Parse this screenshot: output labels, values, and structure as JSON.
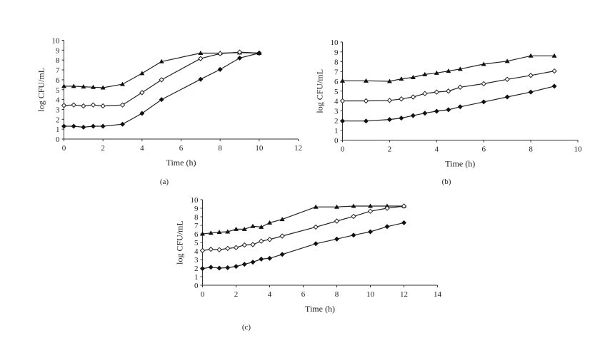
{
  "chart_data": [
    {
      "type": "line",
      "panel_label": "(a)",
      "xlabel": "Time (h)",
      "ylabel": "log CFU/mL",
      "xlim": [
        0,
        12
      ],
      "ylim": [
        0,
        10
      ],
      "xticks": [
        0,
        2,
        4,
        6,
        8,
        10,
        12
      ],
      "yticks": [
        0,
        1,
        2,
        3,
        4,
        5,
        6,
        7,
        8,
        9,
        10
      ],
      "grid": false,
      "series": [
        {
          "marker": "filled-triangle",
          "x": [
            0,
            0.5,
            1,
            1.5,
            2,
            3,
            4,
            5,
            7,
            8,
            9,
            10
          ],
          "y": [
            5.35,
            5.35,
            5.3,
            5.25,
            5.2,
            5.55,
            6.65,
            7.85,
            8.7,
            8.7,
            8.75,
            8.7
          ]
        },
        {
          "marker": "open-diamond",
          "x": [
            0,
            0.5,
            1,
            1.5,
            2,
            3,
            4,
            5,
            7,
            8,
            9,
            10
          ],
          "y": [
            3.4,
            3.45,
            3.35,
            3.45,
            3.35,
            3.45,
            4.7,
            6.0,
            8.15,
            8.65,
            8.8,
            8.7
          ]
        },
        {
          "marker": "filled-diamond",
          "x": [
            0,
            0.5,
            1,
            1.5,
            2,
            3,
            4,
            5,
            7,
            8,
            9,
            10
          ],
          "y": [
            1.3,
            1.3,
            1.2,
            1.3,
            1.3,
            1.5,
            2.6,
            4.0,
            6.05,
            7.05,
            8.2,
            8.7
          ]
        }
      ]
    },
    {
      "type": "line",
      "panel_label": "(b)",
      "xlabel": "Time (h)",
      "ylabel": "log CFU/mL",
      "xlim": [
        0,
        10
      ],
      "ylim": [
        0,
        10
      ],
      "xticks": [
        0,
        2,
        4,
        6,
        8,
        10
      ],
      "yticks": [
        0,
        1,
        2,
        3,
        4,
        5,
        6,
        7,
        8,
        9,
        10
      ],
      "grid": false,
      "series": [
        {
          "marker": "filled-triangle",
          "x": [
            0,
            1,
            2,
            2.5,
            3,
            3.5,
            4,
            4.5,
            5,
            6,
            7,
            8,
            9
          ],
          "y": [
            6.05,
            6.05,
            6.0,
            6.25,
            6.4,
            6.7,
            6.85,
            7.05,
            7.25,
            7.75,
            8.05,
            8.6,
            8.6
          ]
        },
        {
          "marker": "open-diamond",
          "x": [
            0,
            1,
            2,
            2.5,
            3,
            3.5,
            4,
            4.5,
            5,
            6,
            7,
            8,
            9
          ],
          "y": [
            4.0,
            4.0,
            4.05,
            4.2,
            4.4,
            4.75,
            4.9,
            5.0,
            5.4,
            5.75,
            6.2,
            6.6,
            7.05
          ]
        },
        {
          "marker": "filled-diamond",
          "x": [
            0,
            1,
            2,
            2.5,
            3,
            3.5,
            4,
            4.5,
            5,
            6,
            7,
            8,
            9
          ],
          "y": [
            1.95,
            1.95,
            2.1,
            2.25,
            2.5,
            2.75,
            2.95,
            3.1,
            3.4,
            3.9,
            4.4,
            4.9,
            5.5
          ]
        }
      ]
    },
    {
      "type": "line",
      "panel_label": "(c)",
      "xlabel": "Time (h)",
      "ylabel": "log CFU/mL",
      "xlim": [
        0,
        14
      ],
      "ylim": [
        0,
        10
      ],
      "xticks": [
        0,
        2,
        4,
        6,
        8,
        10,
        12,
        14
      ],
      "yticks": [
        0,
        1,
        2,
        3,
        4,
        5,
        6,
        7,
        8,
        9,
        10
      ],
      "grid": false,
      "series": [
        {
          "marker": "filled-triangle",
          "x": [
            0,
            0.5,
            1,
            1.5,
            2,
            2.5,
            3,
            3.5,
            4,
            4.75,
            6.75,
            8,
            9,
            10,
            11,
            12
          ],
          "y": [
            6.0,
            6.1,
            6.2,
            6.25,
            6.55,
            6.55,
            6.9,
            6.8,
            7.3,
            7.7,
            9.15,
            9.15,
            9.25,
            9.25,
            9.25,
            9.25
          ]
        },
        {
          "marker": "open-diamond",
          "x": [
            0,
            0.5,
            1,
            1.5,
            2,
            2.5,
            3,
            3.5,
            4,
            4.75,
            6.75,
            8,
            9,
            10,
            11,
            12
          ],
          "y": [
            4.05,
            4.2,
            4.15,
            4.3,
            4.4,
            4.7,
            4.75,
            5.15,
            5.35,
            5.75,
            6.8,
            7.5,
            8.05,
            8.65,
            9.0,
            9.25
          ]
        },
        {
          "marker": "filled-diamond",
          "x": [
            0,
            0.5,
            1,
            1.5,
            2,
            2.5,
            3,
            3.5,
            4,
            4.75,
            6.75,
            8,
            9,
            10,
            11,
            12
          ],
          "y": [
            1.95,
            2.1,
            2.0,
            2.05,
            2.2,
            2.45,
            2.7,
            3.05,
            3.15,
            3.6,
            4.85,
            5.4,
            5.85,
            6.25,
            6.85,
            7.3
          ]
        }
      ]
    }
  ]
}
